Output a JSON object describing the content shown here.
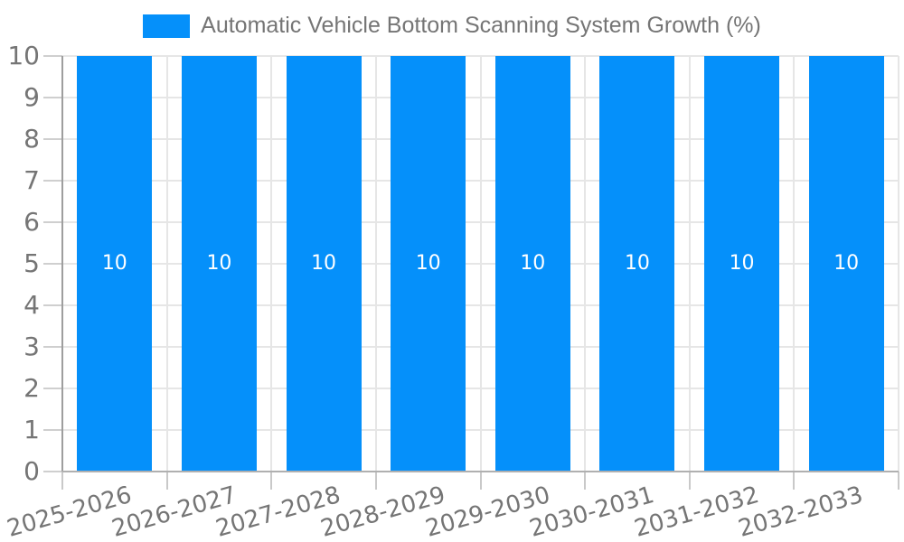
{
  "chart_data": {
    "type": "bar",
    "title": "Automatic Vehicle Bottom Scanning System Growth (%)",
    "categories": [
      "2025-2026",
      "2026-2027",
      "2027-2028",
      "2028-2029",
      "2029-2030",
      "2030-2031",
      "2031-2032",
      "2032-2033"
    ],
    "series": [
      {
        "name": "Automatic Vehicle Bottom Scanning System Growth (%)",
        "values": [
          10,
          10,
          10,
          10,
          10,
          10,
          10,
          10
        ],
        "data_labels": [
          "10",
          "10",
          "10",
          "10",
          "10",
          "10",
          "10",
          "10"
        ]
      }
    ],
    "xlabel": "",
    "ylabel": "",
    "ylim": [
      0,
      10
    ],
    "ytick_step": 1,
    "ytick_labels": [
      "0",
      "1",
      "2",
      "3",
      "4",
      "5",
      "6",
      "7",
      "8",
      "9",
      "10"
    ],
    "grid": true,
    "legend_position": "top-center",
    "colors": {
      "bar": "#0590fa",
      "bar_label": "#ffffff",
      "axis_text": "#757575",
      "gridline": "#e6e6e6",
      "background": "#ffffff"
    }
  }
}
